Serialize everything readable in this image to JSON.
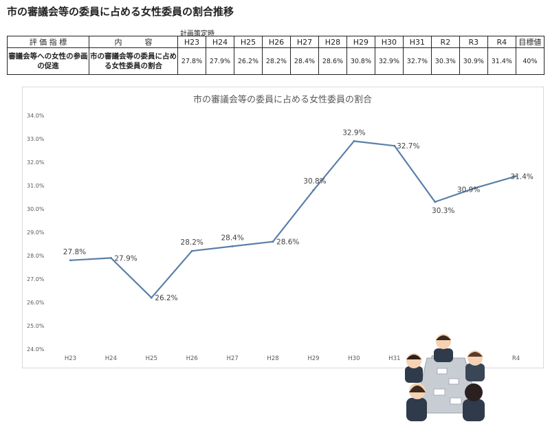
{
  "page": {
    "title": "市の審議会等の委員に占める女性委員の割合推移",
    "plan_label": "計画策定時"
  },
  "table": {
    "headers": [
      "評 価 指 標",
      "内　　　容",
      "H23",
      "H24",
      "H25",
      "H26",
      "H27",
      "H28",
      "H29",
      "H30",
      "H31",
      "R2",
      "R3",
      "R4",
      "目標値"
    ],
    "row": {
      "indicator": "審議会等への女性の参画の促進",
      "content": "市の審議会等の委員に占める女性委員の割合",
      "values": [
        "27.8%",
        "27.9%",
        "26.2%",
        "28.2%",
        "28.4%",
        "28.6%",
        "30.8%",
        "32.9%",
        "32.7%",
        "30.3%",
        "30.9%",
        "31.4%",
        "40%"
      ]
    }
  },
  "chart_data": {
    "type": "line",
    "title": "市の審議会等の委員に占める女性委員の割合",
    "categories": [
      "H23",
      "H24",
      "H25",
      "H26",
      "H27",
      "H28",
      "H29",
      "H30",
      "H31",
      "R2",
      "R3",
      "R4"
    ],
    "series": [
      {
        "values": [
          27.8,
          27.9,
          26.2,
          28.2,
          28.4,
          28.6,
          30.8,
          32.9,
          32.7,
          30.3,
          30.9,
          31.4
        ]
      }
    ],
    "data_labels": [
      "27.8%",
      "27.9%",
      "26.2%",
      "28.2%",
      "28.4%",
      "28.6%",
      "30.8%",
      "32.9%",
      "32.7%",
      "30.3%",
      "30.9%",
      "31.4%"
    ],
    "ylim": [
      24.0,
      34.0
    ],
    "yticks": [
      "24.0%",
      "25.0%",
      "26.0%",
      "27.0%",
      "28.0%",
      "29.0%",
      "30.0%",
      "31.0%",
      "32.0%",
      "33.0%",
      "34.0%"
    ],
    "xlabel": "",
    "ylabel": "",
    "grid": false,
    "line_color": "#5a7fa8"
  }
}
